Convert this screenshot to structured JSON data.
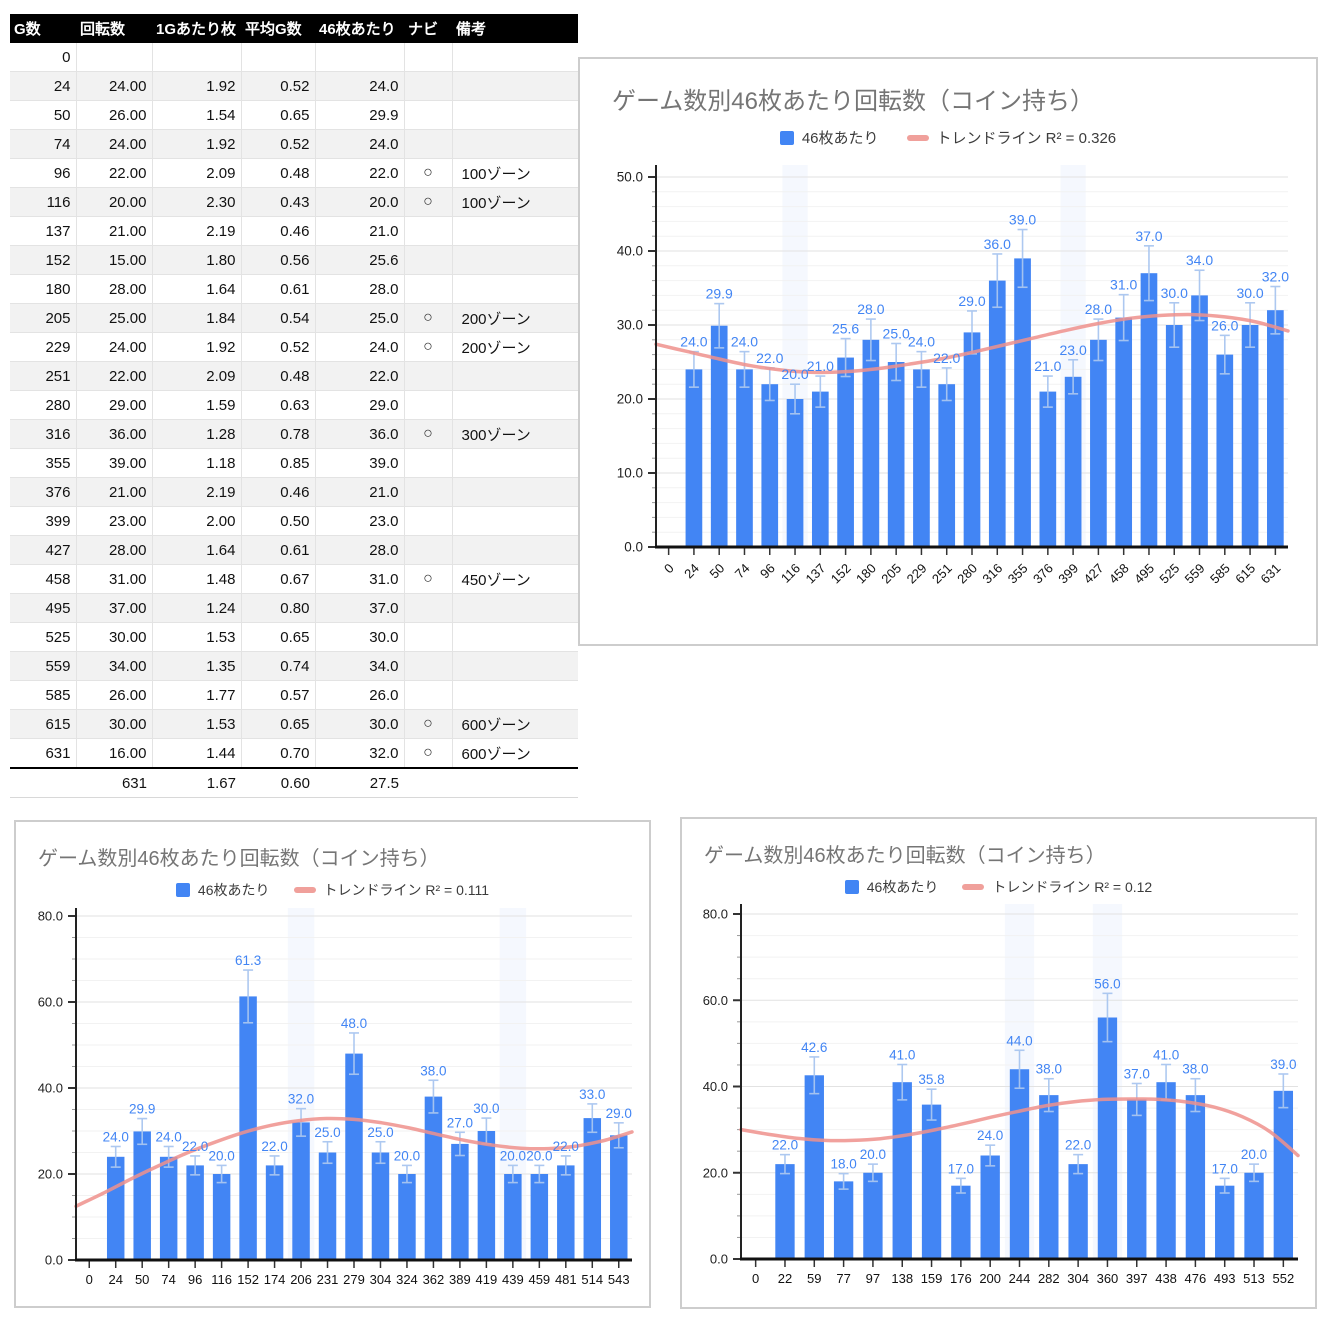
{
  "table": {
    "headers": [
      "G数",
      "回転数",
      "1Gあたり枚",
      "平均G数",
      "46枚あたり",
      "ナビ",
      "備考"
    ],
    "rows": [
      [
        "0",
        "",
        "",
        "",
        "",
        "",
        ""
      ],
      [
        "24",
        "24.00",
        "1.92",
        "0.52",
        "24.0",
        "",
        ""
      ],
      [
        "50",
        "26.00",
        "1.54",
        "0.65",
        "29.9",
        "",
        ""
      ],
      [
        "74",
        "24.00",
        "1.92",
        "0.52",
        "24.0",
        "",
        ""
      ],
      [
        "96",
        "22.00",
        "2.09",
        "0.48",
        "22.0",
        "○",
        "100ゾーン"
      ],
      [
        "116",
        "20.00",
        "2.30",
        "0.43",
        "20.0",
        "○",
        "100ゾーン"
      ],
      [
        "137",
        "21.00",
        "2.19",
        "0.46",
        "21.0",
        "",
        ""
      ],
      [
        "152",
        "15.00",
        "1.80",
        "0.56",
        "25.6",
        "",
        ""
      ],
      [
        "180",
        "28.00",
        "1.64",
        "0.61",
        "28.0",
        "",
        ""
      ],
      [
        "205",
        "25.00",
        "1.84",
        "0.54",
        "25.0",
        "○",
        "200ゾーン"
      ],
      [
        "229",
        "24.00",
        "1.92",
        "0.52",
        "24.0",
        "○",
        "200ゾーン"
      ],
      [
        "251",
        "22.00",
        "2.09",
        "0.48",
        "22.0",
        "",
        ""
      ],
      [
        "280",
        "29.00",
        "1.59",
        "0.63",
        "29.0",
        "",
        ""
      ],
      [
        "316",
        "36.00",
        "1.28",
        "0.78",
        "36.0",
        "○",
        "300ゾーン"
      ],
      [
        "355",
        "39.00",
        "1.18",
        "0.85",
        "39.0",
        "",
        ""
      ],
      [
        "376",
        "21.00",
        "2.19",
        "0.46",
        "21.0",
        "",
        ""
      ],
      [
        "399",
        "23.00",
        "2.00",
        "0.50",
        "23.0",
        "",
        ""
      ],
      [
        "427",
        "28.00",
        "1.64",
        "0.61",
        "28.0",
        "",
        ""
      ],
      [
        "458",
        "31.00",
        "1.48",
        "0.67",
        "31.0",
        "○",
        "450ゾーン"
      ],
      [
        "495",
        "37.00",
        "1.24",
        "0.80",
        "37.0",
        "",
        ""
      ],
      [
        "525",
        "30.00",
        "1.53",
        "0.65",
        "30.0",
        "",
        ""
      ],
      [
        "559",
        "34.00",
        "1.35",
        "0.74",
        "34.0",
        "",
        ""
      ],
      [
        "585",
        "26.00",
        "1.77",
        "0.57",
        "26.0",
        "",
        ""
      ],
      [
        "615",
        "30.00",
        "1.53",
        "0.65",
        "30.0",
        "○",
        "600ゾーン"
      ],
      [
        "631",
        "16.00",
        "1.44",
        "0.70",
        "32.0",
        "○",
        "600ゾーン"
      ]
    ],
    "total": [
      "",
      "631",
      "1.67",
      "0.60",
      "27.5",
      "",
      ""
    ]
  },
  "colors": {
    "bar": "#4285f4",
    "bar_label": "#4285f4",
    "trend": "#ee918c",
    "error_bar": "#a9c6f0",
    "grid_major": "#e2e2e2",
    "grid_minor": "#f2f2f2",
    "axis": "#111111",
    "tick_label": "#222222",
    "highlight_band": "rgba(66,133,244,0.055)"
  },
  "chart_data": [
    {
      "type": "bar",
      "title": "ゲーム数別46枚あたり回転数（コイン持ち）",
      "legend_series": "46枚あたり",
      "legend_trend": "トレンドライン R² = 0.326",
      "categories": [
        "0",
        "24",
        "50",
        "74",
        "96",
        "116",
        "137",
        "152",
        "180",
        "205",
        "229",
        "251",
        "280",
        "316",
        "355",
        "376",
        "399",
        "427",
        "458",
        "495",
        "525",
        "559",
        "585",
        "615",
        "631"
      ],
      "values": [
        null,
        24,
        29.9,
        24,
        22,
        20,
        21,
        25.6,
        28,
        25,
        24,
        22,
        29,
        36,
        39,
        21,
        23,
        28,
        31,
        37,
        30,
        34,
        26,
        30,
        32
      ],
      "ylim": [
        0,
        50
      ],
      "y_major_step": 10,
      "y_minor_step": 2,
      "grid": true,
      "legend_position": "top",
      "error_bars_pct": 0.1,
      "trendline_r2": 0.326,
      "trend_points": [
        [
          0,
          27.4
        ],
        [
          0.05,
          26.4
        ],
        [
          0.1,
          25.4
        ],
        [
          0.15,
          24.5
        ],
        [
          0.2,
          23.9
        ],
        [
          0.25,
          23.6
        ],
        [
          0.3,
          23.7
        ],
        [
          0.35,
          24.1
        ],
        [
          0.4,
          24.7
        ],
        [
          0.45,
          25.4
        ],
        [
          0.5,
          26.3
        ],
        [
          0.55,
          27.3
        ],
        [
          0.6,
          28.3
        ],
        [
          0.65,
          29.3
        ],
        [
          0.7,
          30.2
        ],
        [
          0.75,
          30.9
        ],
        [
          0.8,
          31.3
        ],
        [
          0.85,
          31.4
        ],
        [
          0.9,
          31.1
        ],
        [
          0.95,
          30.4
        ],
        [
          1,
          29.2
        ]
      ],
      "highlight_columns": [
        5,
        16
      ]
    },
    {
      "type": "bar",
      "title": "ゲーム数別46枚あたり回転数（コイン持ち）",
      "legend_series": "46枚あたり",
      "legend_trend": "トレンドライン R² = 0.111",
      "categories": [
        "0",
        "24",
        "50",
        "74",
        "96",
        "116",
        "152",
        "174",
        "206",
        "231",
        "279",
        "304",
        "324",
        "362",
        "389",
        "419",
        "439",
        "459",
        "481",
        "514",
        "543"
      ],
      "values": [
        null,
        24,
        29.9,
        24,
        22,
        20,
        61.3,
        22,
        32,
        25,
        48,
        25,
        20,
        38,
        27,
        30,
        20,
        20,
        22,
        33,
        29
      ],
      "ylim": [
        0,
        80
      ],
      "y_major_step": 20,
      "y_minor_step": 5,
      "grid": true,
      "legend_position": "top",
      "error_bars_pct": 0.1,
      "trendline_r2": 0.111,
      "trend_points": [
        [
          0,
          12.5
        ],
        [
          0.05,
          15.6
        ],
        [
          0.1,
          18.9
        ],
        [
          0.15,
          22.0
        ],
        [
          0.2,
          24.9
        ],
        [
          0.25,
          27.4
        ],
        [
          0.3,
          29.6
        ],
        [
          0.35,
          31.3
        ],
        [
          0.4,
          32.4
        ],
        [
          0.45,
          32.9
        ],
        [
          0.5,
          32.7
        ],
        [
          0.55,
          31.9
        ],
        [
          0.6,
          30.7
        ],
        [
          0.65,
          29.2
        ],
        [
          0.7,
          27.8
        ],
        [
          0.75,
          26.7
        ],
        [
          0.8,
          26.0
        ],
        [
          0.85,
          25.9
        ],
        [
          0.9,
          26.5
        ],
        [
          0.95,
          27.8
        ],
        [
          1,
          29.8
        ]
      ],
      "highlight_columns": [
        8,
        16
      ]
    },
    {
      "type": "bar",
      "title": "ゲーム数別46枚あたり回転数（コイン持ち）",
      "legend_series": "46枚あたり",
      "legend_trend": "トレンドライン R² = 0.12",
      "categories": [
        "0",
        "22",
        "59",
        "77",
        "97",
        "138",
        "159",
        "176",
        "200",
        "244",
        "282",
        "304",
        "360",
        "397",
        "438",
        "476",
        "493",
        "513",
        "552"
      ],
      "values": [
        null,
        22,
        42.6,
        18,
        20,
        41,
        35.8,
        17,
        24,
        44,
        38,
        22,
        56,
        37,
        41,
        38,
        17,
        20,
        39
      ],
      "ylim": [
        0,
        80
      ],
      "y_major_step": 20,
      "y_minor_step": 5,
      "grid": true,
      "legend_position": "top",
      "error_bars_pct": 0.1,
      "trendline_r2": 0.12,
      "trend_points": [
        [
          0,
          30.0
        ],
        [
          0.05,
          28.9
        ],
        [
          0.1,
          28.0
        ],
        [
          0.15,
          27.5
        ],
        [
          0.2,
          27.5
        ],
        [
          0.25,
          27.9
        ],
        [
          0.3,
          28.8
        ],
        [
          0.35,
          30.0
        ],
        [
          0.4,
          31.4
        ],
        [
          0.45,
          32.9
        ],
        [
          0.5,
          34.3
        ],
        [
          0.55,
          35.6
        ],
        [
          0.6,
          36.5
        ],
        [
          0.65,
          37.0
        ],
        [
          0.7,
          37.1
        ],
        [
          0.75,
          37.0
        ],
        [
          0.8,
          36.4
        ],
        [
          0.85,
          35.2
        ],
        [
          0.9,
          33.0
        ],
        [
          0.95,
          29.5
        ],
        [
          1,
          24.0
        ]
      ],
      "highlight_columns": [
        9,
        12
      ]
    }
  ]
}
